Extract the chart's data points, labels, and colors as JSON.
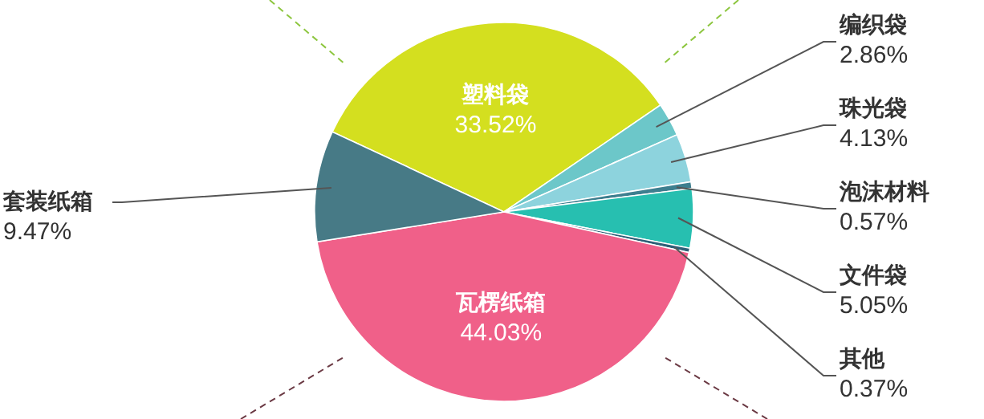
{
  "chart_data": {
    "type": "pie",
    "categories": [
      "塑料袋",
      "编织袋",
      "珠光袋",
      "泡沫材料",
      "文件袋",
      "其他",
      "瓦楞纸箱",
      "套装纸箱"
    ],
    "values": [
      33.52,
      2.86,
      4.13,
      0.57,
      5.05,
      0.37,
      44.03,
      9.47
    ],
    "value_labels": [
      "33.52%",
      "2.86%",
      "4.13%",
      "0.57%",
      "5.05%",
      "0.37%",
      "44.03%",
      "9.47%"
    ],
    "colors": [
      "#d4df1f",
      "#6cc7c9",
      "#8dd3dd",
      "#3d7f8f",
      "#27bfb0",
      "#2e6077",
      "#f06089",
      "#477a86"
    ]
  }
}
